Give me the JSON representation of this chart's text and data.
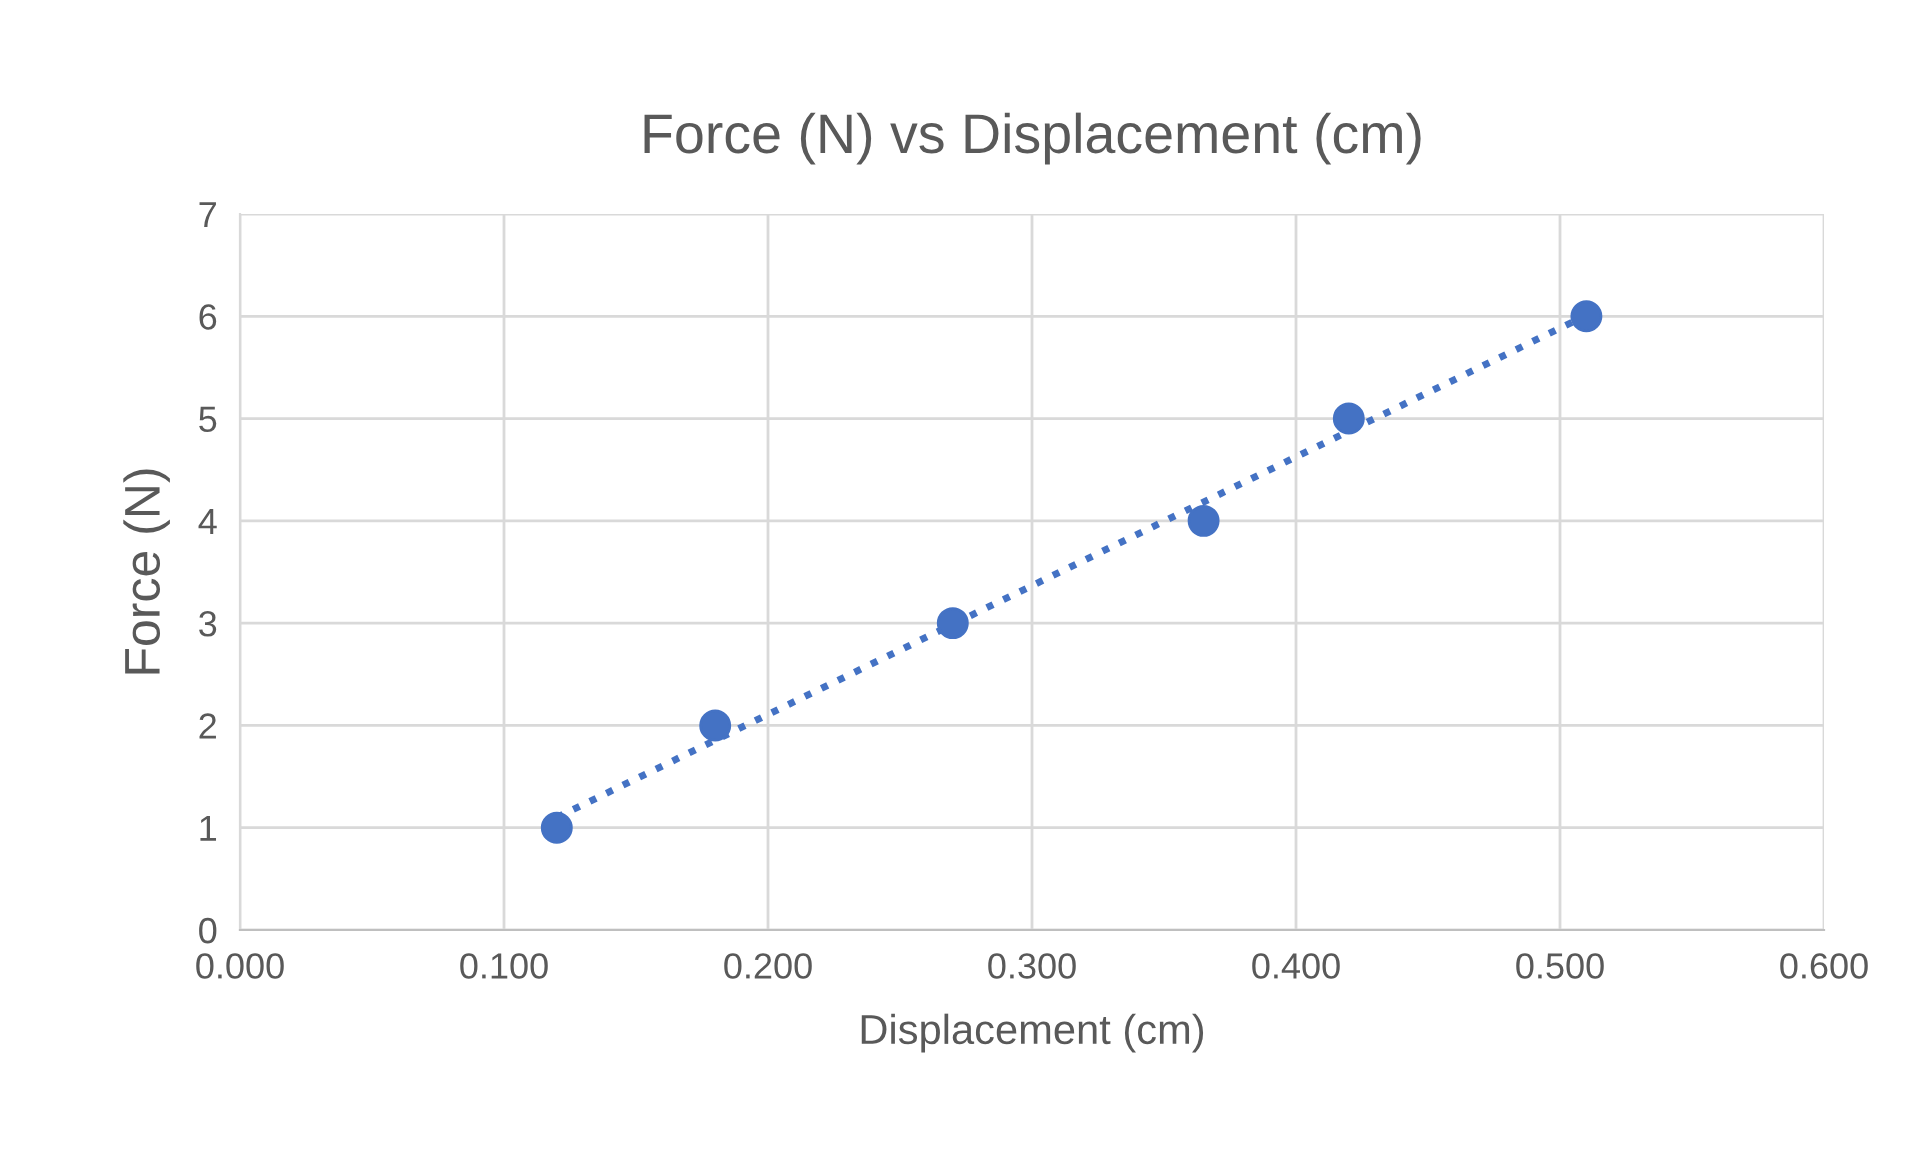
{
  "chart_data": {
    "type": "scatter",
    "title": "Force (N) vs Displacement (cm)",
    "xlabel": "Displacement (cm)",
    "ylabel": "Force (N)",
    "x": [
      0.12,
      0.18,
      0.27,
      0.365,
      0.42,
      0.51
    ],
    "series": [
      {
        "color": "#4472c4",
        "values": [
          1,
          2,
          3,
          4,
          5,
          6
        ],
        "marker": "circle"
      },
      {
        "type": "line",
        "color": "#4472c4",
        "x": [
          0.12,
          0.51
        ],
        "values": [
          1.1,
          6.01
        ],
        "line_style": "dotted",
        "marker": "none"
      }
    ],
    "xlim": [
      0,
      0.6
    ],
    "xticks": [
      {
        "value": 0,
        "label": "0.000"
      },
      {
        "value": 0.1,
        "label": "0.100"
      },
      {
        "value": 0.2,
        "label": "0.200"
      },
      {
        "value": 0.3,
        "label": "0.300"
      },
      {
        "value": 0.4,
        "label": "0.400"
      },
      {
        "value": 0.5,
        "label": "0.500"
      },
      {
        "value": 0.6,
        "label": "0.600"
      }
    ],
    "ylim": [
      0,
      7
    ],
    "yticks": [
      0,
      1,
      2,
      3,
      4,
      5,
      6,
      7
    ],
    "grid": true,
    "legend": false
  }
}
